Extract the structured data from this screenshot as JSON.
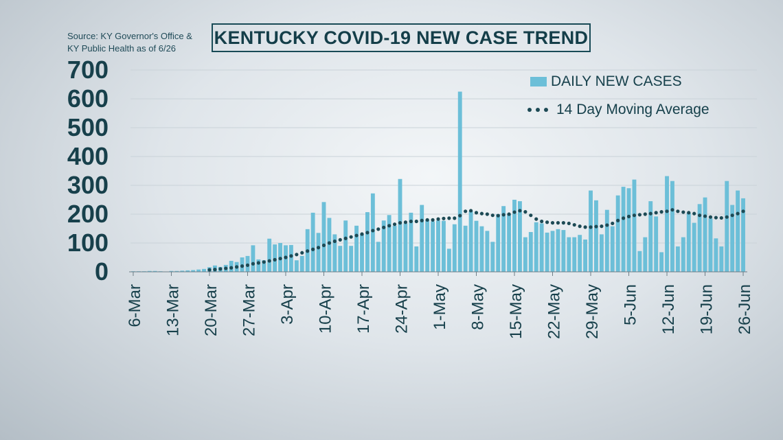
{
  "source_note": {
    "line1": "Source: KY Governor's Office &",
    "line2": "KY Public Health as of 6/26"
  },
  "colors": {
    "bar": "#6cbfd8",
    "average": "#1d4a55",
    "axis_text": "#17404b",
    "grid": "#c9d2d8"
  },
  "chart_data": {
    "type": "bar",
    "title": "KENTUCKY COVID-19 NEW CASE TREND",
    "ylim": [
      0,
      700
    ],
    "yticks": [
      "0",
      "100",
      "200",
      "300",
      "400",
      "500",
      "600",
      "700"
    ],
    "grid": true,
    "legend_position": "top-right",
    "x_start_date": "2020-03-06",
    "xticks": [
      "6-Mar",
      "13-Mar",
      "20-Mar",
      "27-Mar",
      "3-Apr",
      "10-Apr",
      "17-Apr",
      "24-Apr",
      "1-May",
      "8-May",
      "15-May",
      "22-May",
      "29-May",
      "5-Jun",
      "12-Jun",
      "19-Jun",
      "26-Jun"
    ],
    "series": [
      {
        "name": "DAILY NEW CASES",
        "kind": "bar",
        "values": [
          2,
          2,
          2,
          3,
          3,
          2,
          1,
          3,
          3,
          4,
          5,
          6,
          8,
          10,
          16,
          22,
          17,
          24,
          38,
          34,
          50,
          55,
          92,
          43,
          40,
          115,
          95,
          100,
          92,
          93,
          40,
          55,
          148,
          205,
          135,
          242,
          187,
          130,
          90,
          178,
          90,
          160,
          130,
          207,
          272,
          104,
          178,
          197,
          160,
          322,
          168,
          205,
          88,
          232,
          180,
          175,
          178,
          177,
          80,
          165,
          625,
          160,
          210,
          177,
          158,
          142,
          104,
          200,
          228,
          200,
          250,
          245,
          120,
          138,
          172,
          168,
          136,
          142,
          148,
          145,
          120,
          120,
          128,
          112,
          282,
          248,
          130,
          215,
          158,
          265,
          295,
          290,
          320,
          72,
          120,
          245,
          192,
          68,
          332,
          315,
          88,
          120,
          205,
          170,
          235,
          258,
          185,
          116,
          88,
          315,
          232,
          282,
          255
        ]
      },
      {
        "name": "14 Day Moving Average",
        "kind": "dotted-line",
        "values": [
          null,
          null,
          null,
          null,
          null,
          null,
          null,
          null,
          null,
          null,
          null,
          null,
          null,
          null,
          7,
          8,
          10,
          12,
          14,
          17,
          20,
          23,
          28,
          31,
          34,
          38,
          42,
          46,
          50,
          55,
          60,
          66,
          72,
          78,
          84,
          92,
          100,
          106,
          111,
          116,
          121,
          126,
          131,
          136,
          143,
          148,
          154,
          160,
          165,
          170,
          172,
          175,
          175,
          178,
          180,
          180,
          183,
          185,
          186,
          186,
          195,
          210,
          212,
          205,
          202,
          200,
          196,
          195,
          198,
          200,
          207,
          212,
          208,
          196,
          183,
          175,
          172,
          170,
          170,
          170,
          168,
          163,
          158,
          155,
          155,
          157,
          158,
          162,
          168,
          178,
          186,
          192,
          196,
          198,
          200,
          202,
          205,
          208,
          210,
          215,
          210,
          207,
          205,
          202,
          196,
          193,
          190,
          188,
          187,
          190,
          196,
          202,
          210
        ]
      }
    ]
  }
}
